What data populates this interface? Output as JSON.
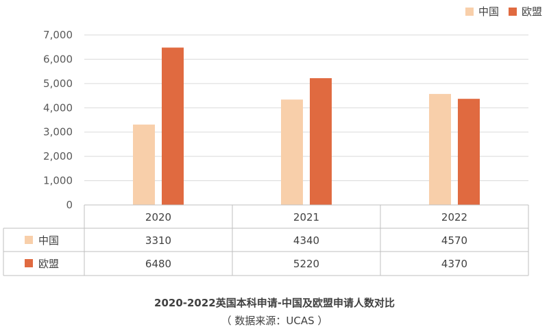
{
  "chart_data": {
    "type": "bar",
    "title": "2020-2022英国本科申请-中国及欧盟申请人数对比",
    "source": "（ 数据来源：UCAS ）",
    "categories": [
      "2020",
      "2021",
      "2022"
    ],
    "series": [
      {
        "name": "中国",
        "values": [
          3310,
          4340,
          4570
        ],
        "table_values": [
          "3310",
          "4340",
          "4570"
        ],
        "color": "#F8CFAA"
      },
      {
        "name": "欧盟",
        "values": [
          6480,
          5220,
          4370
        ],
        "table_values": [
          "6480",
          "5220",
          "4370"
        ],
        "color": "#E06A40"
      }
    ],
    "yticks": [
      "0",
      "1,000",
      "2,000",
      "3,000",
      "4,000",
      "5,000",
      "6,000",
      "7,000"
    ],
    "ylim": [
      0,
      7000
    ],
    "grid": true,
    "legend_position": "top-right",
    "data_table": true
  }
}
